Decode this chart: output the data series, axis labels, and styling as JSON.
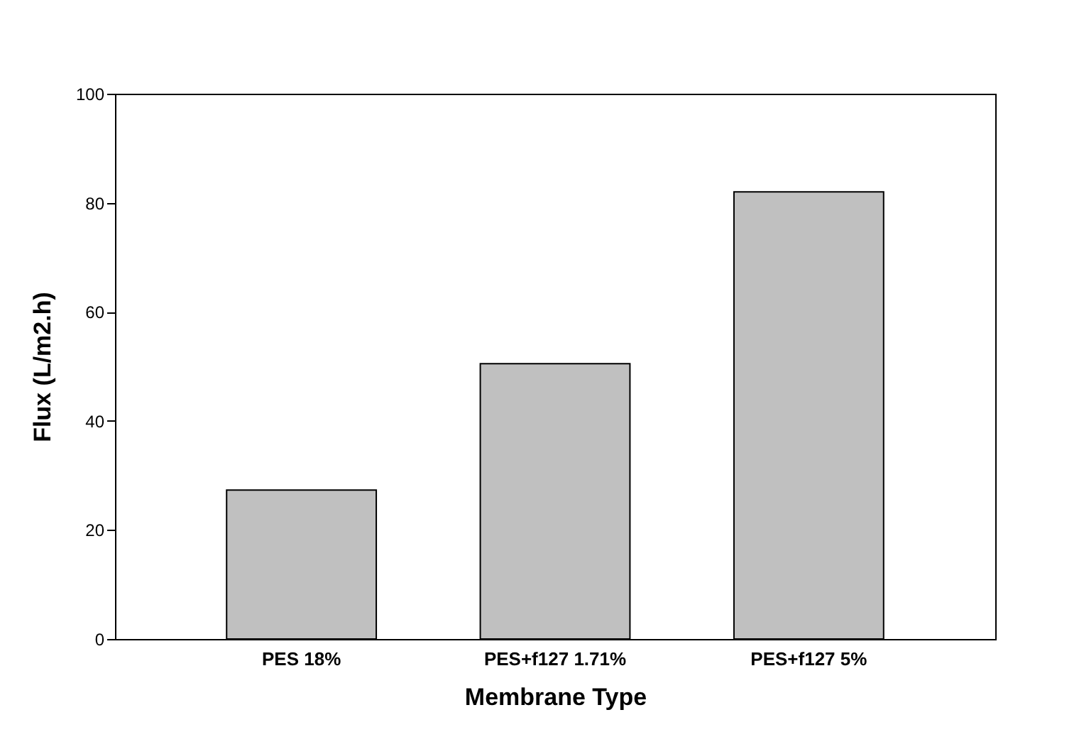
{
  "chart_data": {
    "type": "bar",
    "xlabel": "Membrane Type",
    "ylabel": "Flux (L/m2.h)",
    "categories": [
      "PES 18%",
      "PES+f127 1.71%",
      "PES+f127 5%"
    ],
    "values": [
      27.3,
      50.5,
      82.0
    ],
    "color": "#c0c0c0",
    "ylim": [
      0,
      100
    ],
    "yticks": [
      0,
      20,
      40,
      60,
      80,
      100
    ],
    "grid": false
  }
}
